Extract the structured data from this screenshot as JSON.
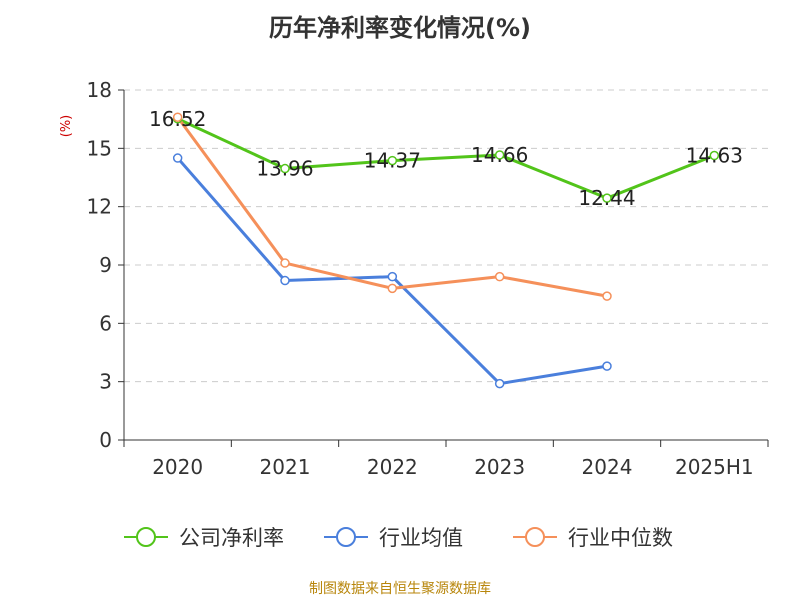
{
  "title": "历年净利率变化情况(%)",
  "unit_label": "(%)",
  "source": "制图数据来自恒生聚源数据库",
  "chart_data": {
    "type": "line",
    "categories": [
      "2020",
      "2021",
      "2022",
      "2023",
      "2024",
      "2025H1"
    ],
    "ylim": [
      0,
      18
    ],
    "yticks": [
      0,
      3,
      6,
      9,
      12,
      15,
      18
    ],
    "grid": true,
    "legend_position": "bottom",
    "series": [
      {
        "name": "公司净利率",
        "color": "#52c41a",
        "values": [
          16.52,
          13.96,
          14.37,
          14.66,
          12.44,
          14.63
        ],
        "labels": [
          "16.52",
          "13.96",
          "14.37",
          "14.66",
          "12.44",
          "14.63"
        ]
      },
      {
        "name": "行业均值",
        "color": "#4a7fdc",
        "values": [
          14.5,
          8.2,
          8.4,
          2.9,
          3.8,
          null
        ]
      },
      {
        "name": "行业中位数",
        "color": "#f5905a",
        "values": [
          16.6,
          9.1,
          7.8,
          8.4,
          7.4,
          null
        ]
      }
    ]
  }
}
